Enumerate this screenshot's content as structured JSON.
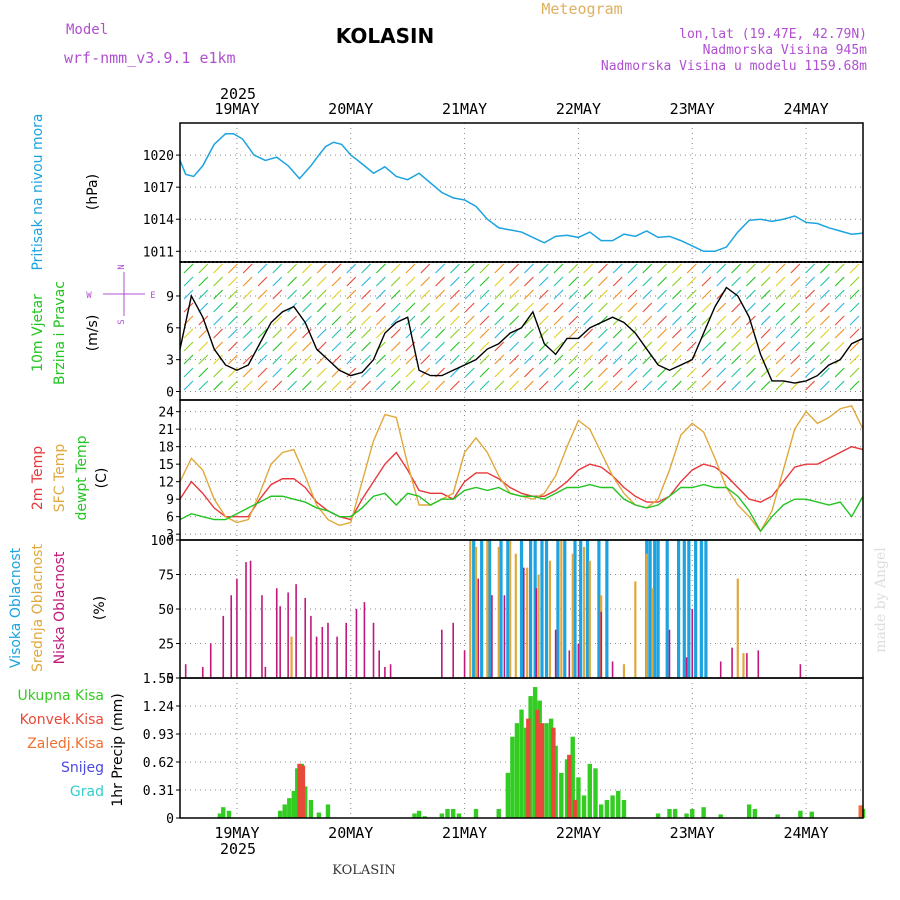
{
  "header": {
    "model_label": "Model",
    "model_name": "wrf-nmm_v3.9.1 e1km",
    "station": "KOLASIN",
    "product": "Meteogram",
    "lonlat": "lon,lat (19.47E, 42.79N)",
    "elevation": "Nadmorska Visina 945m",
    "model_elevation": "Nadmorska Visina u modelu 1159.68m",
    "year": "2025",
    "footer_station": "KOLASIN",
    "credit": "made by Angel"
  },
  "colors": {
    "pressure": "#1ca3e0",
    "temp2m": "#e8383c",
    "sfc": "#e0a83c",
    "dewpt": "#22c422",
    "cloud_high": "#1ca3e0",
    "cloud_mid": "#e0a83c",
    "cloud_low": "#c0187a",
    "precip_total": "#33cc22",
    "precip_conv": "#e84a3a",
    "precip_frz": "#f07030",
    "snow": "#4a4ae0",
    "hail": "#33cccc",
    "wind_panel_label": "#22c422",
    "direction_key": "#b050d0"
  },
  "days": [
    "19MAY",
    "20MAY",
    "21MAY",
    "22MAY",
    "23MAY",
    "24MAY"
  ],
  "panels": {
    "pressure": {
      "label": "Pritisak na nivou mora",
      "unit": "(hPa)"
    },
    "wind": {
      "label1": "10m Vjetar",
      "label2": "Brzina i Pravac",
      "unit": "(m/s)",
      "dir_w": "W",
      "dir_e": "E",
      "dir_n": "N",
      "dir_s": "S"
    },
    "temp": {
      "label1": "2m Temp",
      "label2": "SFC Temp",
      "label3": "dewpt Temp",
      "unit": "(C)"
    },
    "cloud": {
      "label1": "Visoka Oblacnost",
      "label2": "Srednja Oblacnost",
      "label3": "Niska Oblacnost",
      "unit": "(%)"
    },
    "precip": {
      "unit": "1hr Precip (mm)",
      "legend": [
        "Ukupna Kisa",
        "Konvek.Kisa",
        "Zaledj.Kisa",
        "Snijeg",
        "Grad"
      ]
    }
  },
  "chart_data": [
    {
      "type": "line",
      "name": "pressure",
      "ylabel": "(hPa)",
      "ylim": [
        1010,
        1023
      ],
      "yticks": [
        1011,
        1014,
        1017,
        1020
      ],
      "xlim": [
        0,
        6
      ],
      "grid": true,
      "x": [
        0.0,
        0.05,
        0.12,
        0.2,
        0.3,
        0.4,
        0.47,
        0.55,
        0.65,
        0.75,
        0.85,
        0.95,
        1.05,
        1.15,
        1.22,
        1.28,
        1.35,
        1.42,
        1.5,
        1.55,
        1.62,
        1.7,
        1.8,
        1.9,
        2.0,
        2.1,
        2.2,
        2.3,
        2.4,
        2.5,
        2.6,
        2.7,
        2.8,
        2.9,
        3.0,
        3.1,
        3.2,
        3.3,
        3.4,
        3.5,
        3.6,
        3.7,
        3.8,
        3.9,
        4.0,
        4.1,
        4.2,
        4.3,
        4.4,
        4.5,
        4.6,
        4.7,
        4.8,
        4.9,
        5.0,
        5.1,
        5.2,
        5.3,
        5.4,
        5.5,
        5.6,
        5.7,
        5.8,
        5.9,
        6.0
      ],
      "values": [
        1019.5,
        1018.2,
        1018.0,
        1019.0,
        1021.0,
        1022.0,
        1022.0,
        1021.5,
        1020.0,
        1019.5,
        1019.8,
        1019.0,
        1017.8,
        1019.0,
        1020.0,
        1020.8,
        1021.2,
        1021.0,
        1020.0,
        1019.6,
        1019.0,
        1018.3,
        1018.9,
        1018.0,
        1017.7,
        1018.3,
        1017.4,
        1016.5,
        1016.0,
        1015.8,
        1015.2,
        1014.0,
        1013.2,
        1013.0,
        1012.8,
        1012.3,
        1011.8,
        1012.4,
        1012.5,
        1012.3,
        1012.8,
        1012.0,
        1012.0,
        1012.6,
        1012.4,
        1012.9,
        1012.3,
        1012.4,
        1012.0,
        1011.5,
        1011.0,
        1011.0,
        1011.4,
        1012.8,
        1013.9,
        1014.0,
        1013.8,
        1014.0,
        1014.3,
        1013.7,
        1013.6,
        1013.2,
        1012.9,
        1012.6,
        1012.7
      ]
    },
    {
      "type": "line",
      "name": "wind",
      "ylabel": "(m/s)",
      "ylim": [
        -0.8,
        12.2
      ],
      "yticks": [
        0,
        3,
        6,
        9
      ],
      "xlim": [
        0,
        6
      ],
      "grid": true,
      "x": [
        0.0,
        0.1,
        0.2,
        0.3,
        0.4,
        0.5,
        0.6,
        0.7,
        0.8,
        0.9,
        1.0,
        1.1,
        1.2,
        1.3,
        1.4,
        1.5,
        1.6,
        1.7,
        1.8,
        1.9,
        2.0,
        2.1,
        2.2,
        2.3,
        2.4,
        2.5,
        2.6,
        2.7,
        2.8,
        2.9,
        3.0,
        3.1,
        3.2,
        3.3,
        3.4,
        3.5,
        3.6,
        3.7,
        3.8,
        3.9,
        4.0,
        4.1,
        4.2,
        4.3,
        4.4,
        4.5,
        4.6,
        4.7,
        4.8,
        4.9,
        5.0,
        5.1,
        5.2,
        5.3,
        5.4,
        5.5,
        5.6,
        5.7,
        5.8,
        5.9,
        6.0
      ],
      "values": [
        4.0,
        9.0,
        7.0,
        4.0,
        2.5,
        2.0,
        2.5,
        4.5,
        6.5,
        7.5,
        8.0,
        6.5,
        4.0,
        3.0,
        2.0,
        1.5,
        1.8,
        3.0,
        5.5,
        6.5,
        7.0,
        2.0,
        1.5,
        1.5,
        2.0,
        2.5,
        3.0,
        4.0,
        4.5,
        5.5,
        6.0,
        7.5,
        4.5,
        3.5,
        5.0,
        5.0,
        6.0,
        6.5,
        7.0,
        6.5,
        5.5,
        4.0,
        2.5,
        2.0,
        2.5,
        3.0,
        5.5,
        8.0,
        9.8,
        9.0,
        7.0,
        3.5,
        1.0,
        1.0,
        0.8,
        1.0,
        1.5,
        2.5,
        3.0,
        4.5,
        5.0
      ]
    },
    {
      "type": "line",
      "name": "temperature",
      "ylabel": "(C)",
      "ylim": [
        2,
        26
      ],
      "yticks": [
        3,
        6,
        9,
        12,
        15,
        18,
        21,
        24
      ],
      "xlim": [
        0,
        6
      ],
      "grid": true,
      "x": [
        0.0,
        0.1,
        0.2,
        0.3,
        0.4,
        0.5,
        0.6,
        0.7,
        0.8,
        0.9,
        1.0,
        1.1,
        1.2,
        1.3,
        1.4,
        1.5,
        1.6,
        1.7,
        1.8,
        1.9,
        2.0,
        2.1,
        2.2,
        2.3,
        2.4,
        2.5,
        2.6,
        2.7,
        2.8,
        2.9,
        3.0,
        3.1,
        3.2,
        3.3,
        3.4,
        3.5,
        3.6,
        3.7,
        3.8,
        3.9,
        4.0,
        4.1,
        4.2,
        4.3,
        4.4,
        4.5,
        4.6,
        4.7,
        4.8,
        4.9,
        5.0,
        5.1,
        5.2,
        5.3,
        5.4,
        5.5,
        5.6,
        5.7,
        5.8,
        5.9,
        6.0
      ],
      "series": [
        {
          "key": "temp2m",
          "values": [
            9.0,
            12.0,
            10.0,
            7.5,
            6.0,
            6.0,
            6.0,
            9.0,
            11.5,
            12.5,
            12.5,
            11.0,
            8.5,
            7.0,
            6.0,
            5.5,
            9.0,
            12.0,
            15.0,
            17.0,
            14.0,
            10.5,
            10.0,
            10.0,
            9.0,
            12.0,
            13.5,
            13.5,
            12.5,
            11.0,
            10.0,
            9.5,
            9.5,
            10.5,
            12.0,
            14.0,
            15.0,
            14.5,
            13.0,
            11.0,
            9.5,
            8.5,
            8.5,
            9.5,
            12.0,
            14.0,
            15.0,
            14.5,
            13.0,
            11.0,
            9.0,
            8.5,
            9.5,
            12.0,
            14.5,
            15.0,
            15.0,
            16.0,
            17.0,
            18.0,
            17.5
          ]
        },
        {
          "key": "sfc",
          "values": [
            12.0,
            16.0,
            14.0,
            9.0,
            6.0,
            5.0,
            5.5,
            10.0,
            15.0,
            17.0,
            17.5,
            13.0,
            8.0,
            5.5,
            4.5,
            5.0,
            12.0,
            19.0,
            23.5,
            23.0,
            15.0,
            8.0,
            8.0,
            9.0,
            10.0,
            17.0,
            19.5,
            17.0,
            13.0,
            10.0,
            9.5,
            9.0,
            10.0,
            13.0,
            18.0,
            22.5,
            21.0,
            17.0,
            13.0,
            10.0,
            8.0,
            7.5,
            9.0,
            14.0,
            20.0,
            22.0,
            20.5,
            16.0,
            11.0,
            8.0,
            6.0,
            3.5,
            7.0,
            14.0,
            21.0,
            24.0,
            22.0,
            23.0,
            24.5,
            25.0,
            21.0
          ]
        },
        {
          "key": "dewpt",
          "values": [
            5.5,
            6.5,
            6.0,
            5.5,
            5.5,
            6.5,
            7.5,
            8.5,
            9.5,
            9.5,
            9.0,
            8.5,
            7.5,
            7.0,
            6.0,
            6.0,
            7.5,
            9.5,
            10.0,
            8.0,
            10.0,
            9.5,
            8.0,
            9.0,
            9.0,
            10.5,
            11.0,
            10.5,
            11.0,
            10.0,
            9.5,
            9.5,
            9.0,
            10.0,
            11.0,
            11.0,
            11.5,
            11.0,
            11.0,
            9.0,
            8.0,
            7.5,
            8.0,
            9.5,
            11.0,
            11.0,
            11.5,
            11.0,
            11.0,
            9.5,
            7.0,
            3.5,
            6.0,
            8.0,
            9.0,
            9.0,
            8.5,
            8.0,
            8.5,
            6.0,
            9.5
          ]
        }
      ]
    },
    {
      "type": "bar",
      "name": "cloud_cover",
      "ylabel": "(%)",
      "ylim": [
        0,
        100
      ],
      "yticks": [
        0,
        25,
        50,
        75,
        100
      ],
      "xlim": [
        0,
        6
      ],
      "grid": true,
      "series": [
        {
          "key": "low",
          "x": [
            0.05,
            0.2,
            0.27,
            0.38,
            0.45,
            0.5,
            0.58,
            0.62,
            0.72,
            0.75,
            0.85,
            0.88,
            0.95,
            1.02,
            1.1,
            1.15,
            1.2,
            1.25,
            1.3,
            1.38,
            1.46,
            1.55,
            1.62,
            1.7,
            1.75,
            1.8,
            1.85,
            2.3,
            2.4,
            2.5,
            2.62,
            2.74,
            2.85,
            3.02,
            3.13,
            3.3,
            3.42,
            3.5,
            3.7,
            3.8,
            4.3,
            4.45,
            4.5,
            4.75,
            4.85,
            4.98,
            5.08,
            5.45
          ],
          "values": [
            10,
            8,
            25,
            45,
            60,
            72,
            84,
            85,
            60,
            8,
            65,
            52,
            62,
            68,
            58,
            45,
            30,
            37,
            40,
            30,
            40,
            50,
            55,
            40,
            20,
            8,
            10,
            35,
            40,
            20,
            72,
            60,
            60,
            80,
            65,
            35,
            20,
            25,
            48,
            12,
            35,
            15,
            50,
            12,
            22,
            18,
            20,
            10
          ]
        },
        {
          "key": "mid",
          "x": [
            0.98,
            2.55,
            2.6,
            2.7,
            2.8,
            2.9,
            2.95,
            3.05,
            3.15,
            3.25,
            3.35,
            3.45,
            3.55,
            3.6,
            3.7,
            3.9,
            4.0,
            4.1,
            4.15,
            4.9,
            4.95
          ],
          "values": [
            30,
            100,
            95,
            100,
            95,
            100,
            90,
            80,
            75,
            85,
            100,
            90,
            95,
            85,
            60,
            10,
            70,
            90,
            65,
            72,
            18
          ]
        },
        {
          "key": "high",
          "x": [
            2.58,
            2.65,
            2.72,
            2.82,
            2.88,
            3.0,
            3.08,
            3.12,
            3.18,
            3.22,
            3.32,
            3.38,
            3.47,
            3.52,
            3.58,
            3.68,
            3.75,
            4.1,
            4.13,
            4.17,
            4.2,
            4.28,
            4.38,
            4.43,
            4.47,
            4.53,
            4.58,
            4.62
          ],
          "values": [
            100,
            100,
            100,
            100,
            100,
            100,
            100,
            100,
            100,
            100,
            100,
            100,
            100,
            100,
            100,
            100,
            100,
            100,
            100,
            100,
            100,
            100,
            100,
            100,
            100,
            100,
            100,
            100
          ]
        }
      ]
    },
    {
      "type": "bar",
      "name": "precipitation",
      "ylabel": "1hr Precip (mm)",
      "ylim": [
        0,
        1.55
      ],
      "yticks": [
        0,
        0.31,
        0.62,
        0.93,
        1.24,
        1.55
      ],
      "xlim": [
        0,
        6
      ],
      "grid": true,
      "series": [
        {
          "key": "total",
          "x": [
            0.35,
            0.38,
            0.43,
            0.88,
            0.92,
            0.96,
            1.0,
            1.03,
            1.07,
            1.1,
            1.15,
            1.22,
            1.3,
            2.06,
            2.1,
            2.15,
            2.3,
            2.35,
            2.4,
            2.45,
            2.6,
            2.8,
            2.88,
            2.92,
            2.96,
            3.0,
            3.04,
            3.08,
            3.12,
            3.16,
            3.22,
            3.26,
            3.3,
            3.35,
            3.4,
            3.45,
            3.5,
            3.55,
            3.6,
            3.65,
            3.7,
            3.75,
            3.8,
            3.85,
            3.9,
            4.2,
            4.3,
            4.35,
            4.45,
            4.5,
            4.6,
            4.75,
            5.0,
            5.05,
            5.25,
            5.45,
            5.55,
            6.0
          ],
          "values": [
            0.05,
            0.12,
            0.08,
            0.08,
            0.15,
            0.22,
            0.3,
            0.55,
            0.6,
            0.35,
            0.2,
            0.06,
            0.15,
            0.05,
            0.08,
            0.02,
            0.05,
            0.1,
            0.1,
            0.05,
            0.1,
            0.1,
            0.5,
            0.9,
            1.05,
            1.2,
            1.0,
            1.35,
            1.45,
            1.3,
            1.05,
            1.1,
            0.8,
            0.5,
            0.65,
            0.9,
            0.45,
            0.25,
            0.6,
            0.55,
            0.15,
            0.2,
            0.25,
            0.3,
            0.2,
            0.05,
            0.1,
            0.1,
            0.05,
            0.1,
            0.12,
            0.04,
            0.15,
            0.1,
            0.04,
            0.08,
            0.07,
            0.1
          ]
        },
        {
          "key": "convective",
          "x": [
            1.05,
            1.08,
            3.06,
            3.14,
            3.18,
            3.28,
            3.42,
            3.47
          ],
          "values": [
            0.6,
            0.58,
            1.1,
            1.2,
            1.05,
            1.0,
            0.7,
            0.2
          ]
        },
        {
          "key": "freezing",
          "x": [
            5.98
          ],
          "values": [
            0.14
          ]
        }
      ]
    }
  ]
}
